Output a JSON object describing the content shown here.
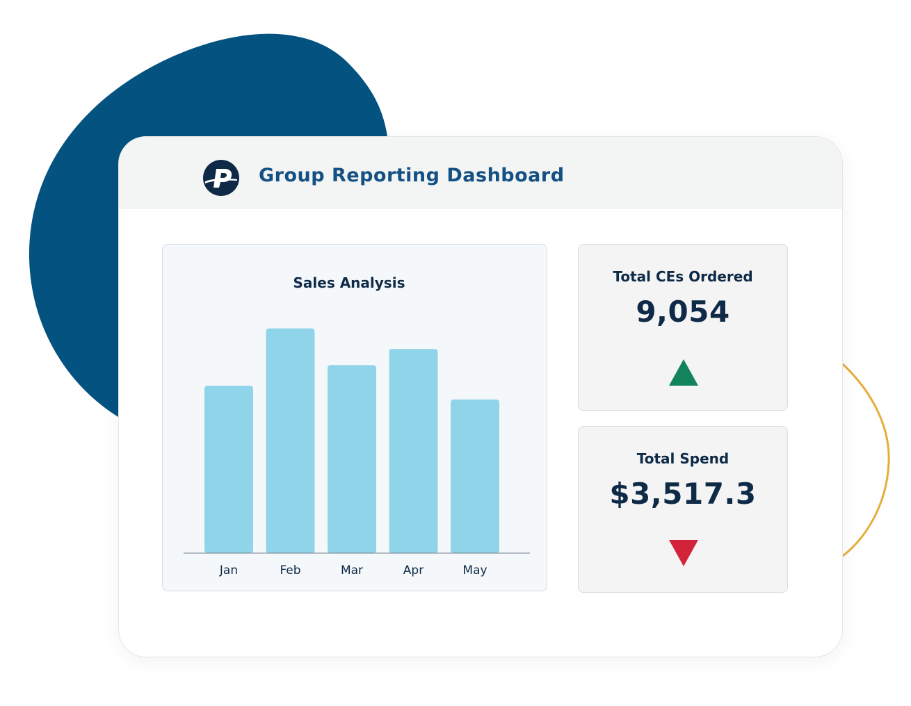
{
  "dashboard": {
    "title": "Group Reporting Dashboard",
    "logo": "p-logo-icon"
  },
  "colors": {
    "brand_dark": "#04527f",
    "accent_gold": "#e6ad3d",
    "bar": "#90d4ea",
    "up": "#12835a",
    "down": "#d3233a",
    "text_dark": "#0e2a47"
  },
  "stats": {
    "ces_ordered": {
      "label": "Total CEs Ordered",
      "value": "9,054",
      "trend": "up",
      "icon": "triangle-up-icon"
    },
    "total_spend": {
      "label": "Total Spend",
      "value": "$3,517.3",
      "trend": "down",
      "icon": "triangle-down-icon"
    }
  },
  "chart_data": {
    "type": "bar",
    "title": "Sales Analysis",
    "categories": [
      "Jan",
      "Feb",
      "Mar",
      "Apr",
      "May"
    ],
    "values": [
      73,
      98,
      82,
      89,
      67
    ],
    "ylim": [
      0,
      100
    ],
    "grid": false,
    "xlabel": "",
    "ylabel": ""
  }
}
